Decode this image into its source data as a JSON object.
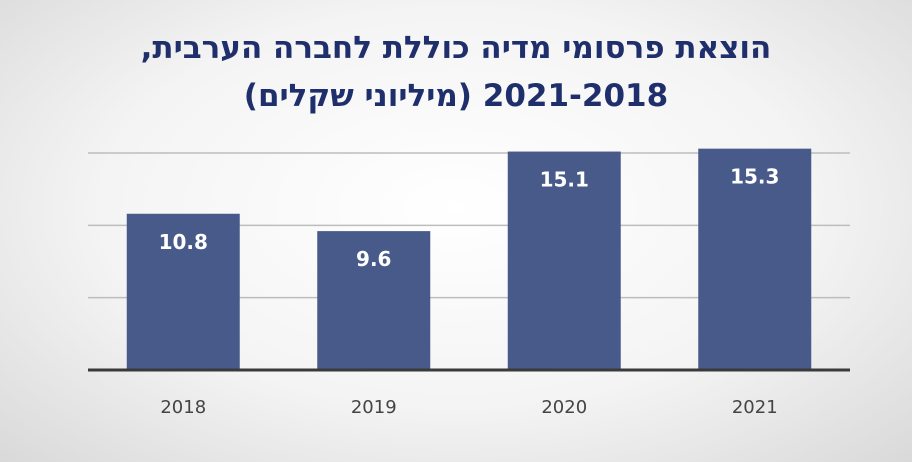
{
  "chart_data": {
    "type": "bar",
    "title_line1": "הוצאת פרסומי מדיה כוללת לחברה הערבית,",
    "title_line2": "2021-2018 (מיליוני שקלים)",
    "categories": [
      "2018",
      "2019",
      "2020",
      "2021"
    ],
    "values": [
      10.8,
      9.6,
      15.1,
      15.3
    ],
    "value_labels": [
      "10.8",
      "9.6",
      "15.1",
      "15.3"
    ],
    "ylim": [
      0,
      15
    ],
    "gridlines": [
      5,
      10,
      15
    ],
    "grid": true,
    "bar_color": "#475a8a",
    "xlabel": "",
    "ylabel": ""
  }
}
